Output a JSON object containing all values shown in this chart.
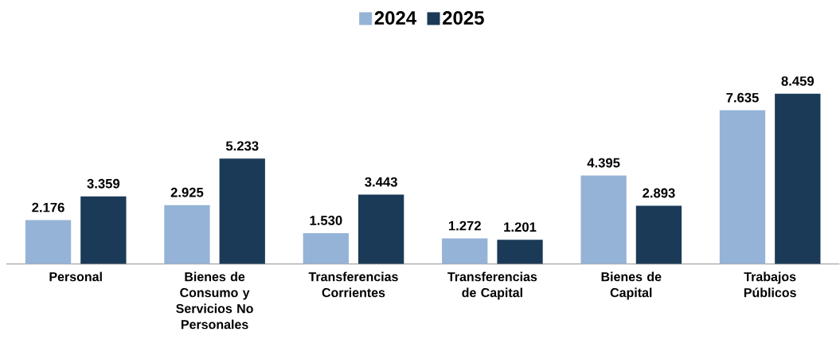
{
  "chart_data": {
    "type": "bar",
    "categories": [
      "Personal",
      "Bienes de Consumo y Servicios No Personales",
      "Transferencias Corrientes",
      "Transferencias de Capital",
      "Bienes de Capital",
      "Trabajos Públicos"
    ],
    "series": [
      {
        "name": "2024",
        "color": "#95b3d7",
        "values": [
          2.176,
          2.925,
          1.53,
          1.272,
          4.395,
          7.635
        ],
        "value_labels": [
          "2.176",
          "2.925",
          "1.530",
          "1.272",
          "4.395",
          "7.635"
        ]
      },
      {
        "name": "2025",
        "color": "#1b3a57",
        "values": [
          3.359,
          5.233,
          3.443,
          1.201,
          2.893,
          8.459
        ],
        "value_labels": [
          "3.359",
          "5.233",
          "3.443",
          "1.201",
          "2.893",
          "8.459"
        ]
      }
    ],
    "legend": "top"
  }
}
